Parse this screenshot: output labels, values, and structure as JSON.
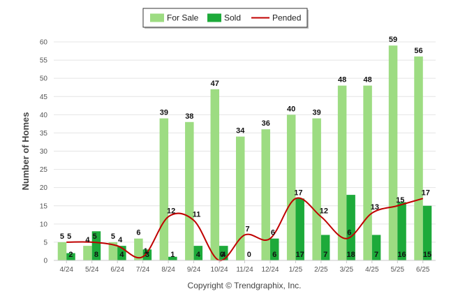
{
  "chart_data": {
    "type": "bar",
    "categories": [
      "4/24",
      "5/24",
      "6/24",
      "7/24",
      "8/24",
      "9/24",
      "10/24",
      "11/24",
      "12/24",
      "1/25",
      "2/25",
      "3/25",
      "4/25",
      "5/25",
      "6/25"
    ],
    "series": [
      {
        "name": "For Sale",
        "kind": "bar",
        "color": "#9ddc82",
        "values": [
          5,
          4,
          5,
          6,
          39,
          38,
          47,
          34,
          36,
          40,
          39,
          48,
          48,
          59,
          56
        ]
      },
      {
        "name": "Sold",
        "kind": "bar",
        "color": "#1daa3a",
        "values": [
          2,
          8,
          4,
          3,
          1,
          4,
          4,
          0,
          6,
          17,
          7,
          18,
          7,
          16,
          15
        ]
      },
      {
        "name": "Pended",
        "kind": "line",
        "color": "#c00000",
        "values": [
          5,
          5,
          4,
          1,
          12,
          11,
          0,
          7,
          6,
          17,
          12,
          6,
          13,
          15,
          17
        ]
      }
    ],
    "ylabel": "Number of Homes",
    "xlabel": "",
    "ylim": [
      0,
      60
    ],
    "yticks": [
      0,
      5,
      10,
      15,
      20,
      25,
      30,
      35,
      40,
      45,
      50,
      55,
      60
    ],
    "grid": true,
    "legend": "top-center"
  },
  "credit": "Copyright © Trendgraphix, Inc."
}
